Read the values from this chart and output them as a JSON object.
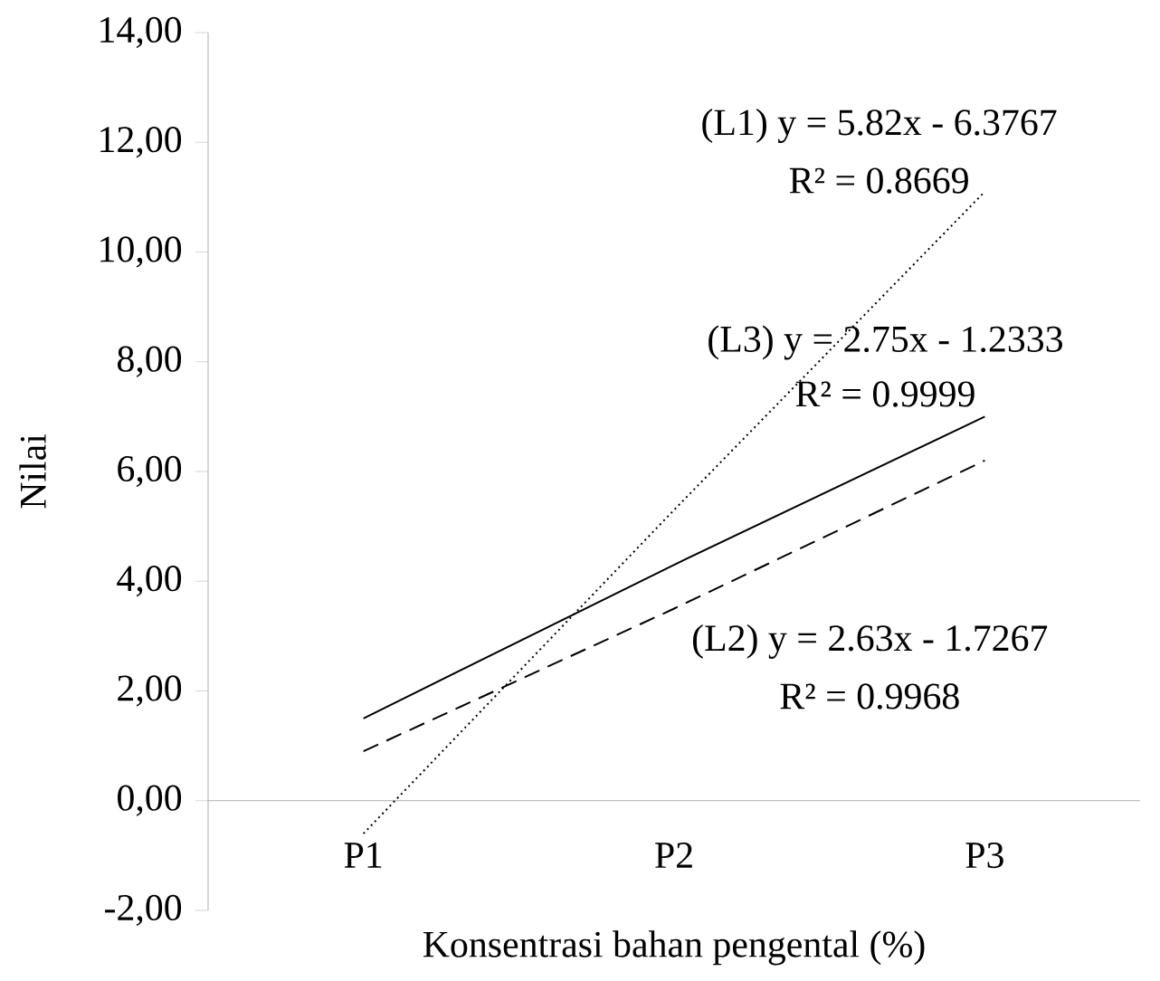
{
  "chart_data": {
    "type": "line",
    "xlabel": "Konsentrasi bahan pengental (%)",
    "ylabel": "Nilai",
    "categories": [
      "P1",
      "P2",
      "P3"
    ],
    "series": [
      {
        "color": "#000000",
        "line_style": "dotted",
        "values": [
          -0.6,
          5.3,
          11.1
        ]
      },
      {
        "color": "#000000",
        "line_style": "dashed",
        "values": [
          0.9,
          3.5,
          6.2
        ]
      },
      {
        "color": "#000000",
        "line_style": "solid",
        "values": [
          1.5,
          4.3,
          7.0
        ]
      }
    ],
    "ylim": [
      -2,
      14
    ],
    "yticks": [
      {
        "value": -2,
        "label": "-2,00"
      },
      {
        "value": 0,
        "label": "0,00"
      },
      {
        "value": 2,
        "label": "2,00"
      },
      {
        "value": 4,
        "label": "4,00"
      },
      {
        "value": 6,
        "label": "6,00"
      },
      {
        "value": 8,
        "label": "8,00"
      },
      {
        "value": 10,
        "label": "10,00"
      },
      {
        "value": 12,
        "label": "12,00"
      },
      {
        "value": 14,
        "label": "14,00"
      }
    ],
    "grid": false,
    "marker": "none",
    "annotations": [
      "(L1) y = 5.82x - 6.3767",
      "R² = 0.8669",
      "(L3) y = 2.75x - 1.2333",
      "R² = 0.9999",
      "(L2) y = 2.63x - 1.7267",
      "R² = 0.9968"
    ]
  }
}
